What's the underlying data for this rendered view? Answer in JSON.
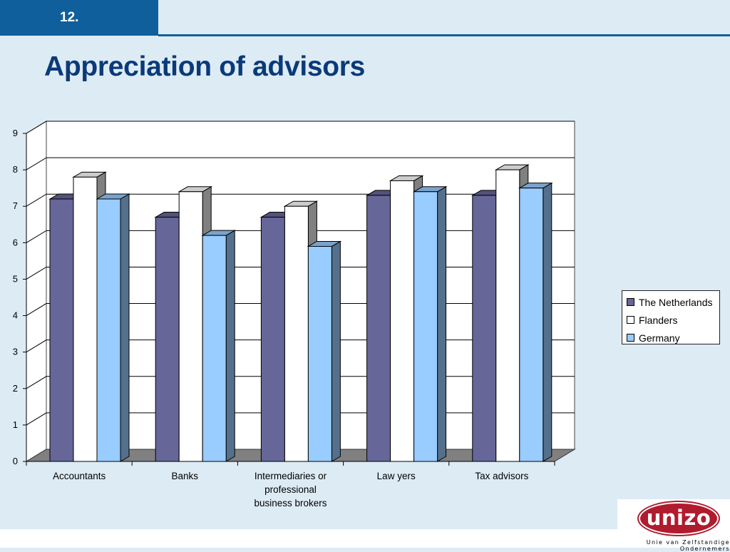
{
  "slide": {
    "number": "12.",
    "title": "Appreciation of advisors"
  },
  "colors": {
    "bar_band": "#0f5f9c",
    "title": "#0a3a78",
    "background": "#ddebf5"
  },
  "logo": {
    "text": "unizo",
    "tagline": "Unie van Zelfstandige Ondernemers"
  },
  "chart_data": {
    "type": "bar",
    "categories": [
      "Accountants",
      "Banks",
      "Intermediaries or professional business brokers",
      "Law yers",
      "Tax advisors"
    ],
    "category_lines": [
      [
        "Accountants"
      ],
      [
        "Banks"
      ],
      [
        "Intermediaries or",
        "professional",
        "business brokers"
      ],
      [
        "Law yers"
      ],
      [
        "Tax advisors"
      ]
    ],
    "series": [
      {
        "name": "The Netherlands",
        "values": [
          7.2,
          6.7,
          6.7,
          7.3,
          7.3
        ],
        "color": "#666699"
      },
      {
        "name": "Flanders",
        "values": [
          7.8,
          7.4,
          7.0,
          7.7,
          8.0
        ],
        "color": "#ffffff"
      },
      {
        "name": "Germany",
        "values": [
          7.2,
          6.2,
          5.9,
          7.4,
          7.5
        ],
        "color": "#99ccff"
      }
    ],
    "yticks": [
      "0",
      "1",
      "2",
      "3",
      "4",
      "5",
      "6",
      "7",
      "8",
      "9"
    ],
    "ylim": [
      0,
      9
    ],
    "grid": true,
    "style": "3d-clustered",
    "legend_position": "right"
  }
}
